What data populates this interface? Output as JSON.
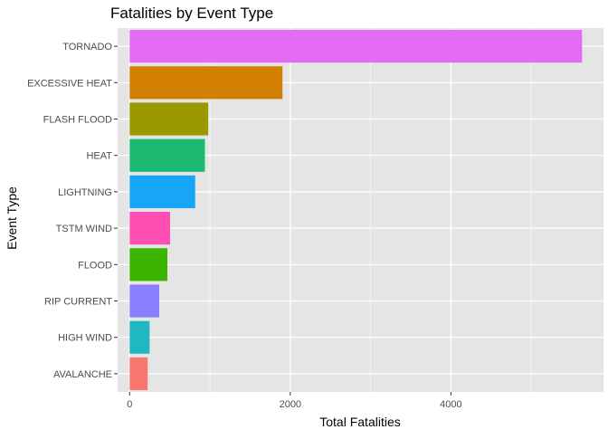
{
  "chart_data": {
    "type": "bar",
    "orientation": "horizontal",
    "title": "Fatalities by Event Type",
    "xlabel": "Total Fatalities",
    "ylabel": "Event Type",
    "xlim": [
      -150,
      5900
    ],
    "xticks": [
      0,
      2000,
      4000
    ],
    "grid": true,
    "legend": "none",
    "categories": [
      "TORNADO",
      "EXCESSIVE HEAT",
      "FLASH FLOOD",
      "HEAT",
      "LIGHTNING",
      "TSTM WIND",
      "FLOOD",
      "RIP CURRENT",
      "HIGH WIND",
      "AVALANCHE"
    ],
    "values": [
      5633,
      1903,
      978,
      937,
      816,
      504,
      470,
      368,
      248,
      224
    ],
    "colors": [
      "#E46BF3",
      "#D27F00",
      "#9A9A00",
      "#1BBA70",
      "#17A5F6",
      "#FF4FB5",
      "#3CB500",
      "#8A80FF",
      "#1FB8C2",
      "#F8766D"
    ],
    "panel_background": "#E5E5E5",
    "grid_color": "#FFFFFF"
  }
}
